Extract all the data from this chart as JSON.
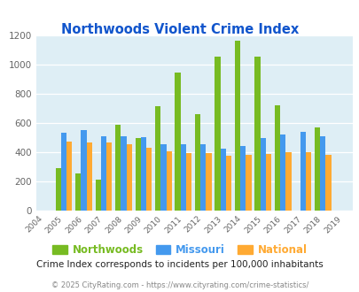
{
  "title": "Northwoods Violent Crime Index",
  "years": [
    2004,
    2005,
    2006,
    2007,
    2008,
    2009,
    2010,
    2011,
    2012,
    2013,
    2014,
    2015,
    2016,
    2017,
    2018,
    2019
  ],
  "northwoods": [
    null,
    290,
    250,
    210,
    585,
    495,
    710,
    945,
    660,
    1050,
    1160,
    1050,
    720,
    null,
    570,
    null
  ],
  "missouri": [
    null,
    530,
    550,
    505,
    505,
    500,
    455,
    450,
    450,
    420,
    440,
    495,
    520,
    535,
    505,
    null
  ],
  "national": [
    null,
    470,
    465,
    465,
    455,
    430,
    405,
    390,
    390,
    375,
    380,
    385,
    395,
    395,
    380,
    null
  ],
  "northwoods_color": "#77bb22",
  "missouri_color": "#4499ee",
  "national_color": "#ffaa33",
  "bg_color": "#deeef5",
  "fig_bg": "#ffffff",
  "title_color": "#1155cc",
  "subtitle_color": "#222222",
  "footer_color": "#888888",
  "ylim": [
    0,
    1200
  ],
  "yticks": [
    0,
    200,
    400,
    600,
    800,
    1000,
    1200
  ],
  "subtitle": "Crime Index corresponds to incidents per 100,000 inhabitants",
  "footer": "© 2025 CityRating.com - https://www.cityrating.com/crime-statistics/",
  "legend_labels": [
    "Northwoods",
    "Missouri",
    "National"
  ],
  "legend_colors": [
    "#77bb22",
    "#4499ee",
    "#ffaa33"
  ],
  "bar_width": 0.28
}
